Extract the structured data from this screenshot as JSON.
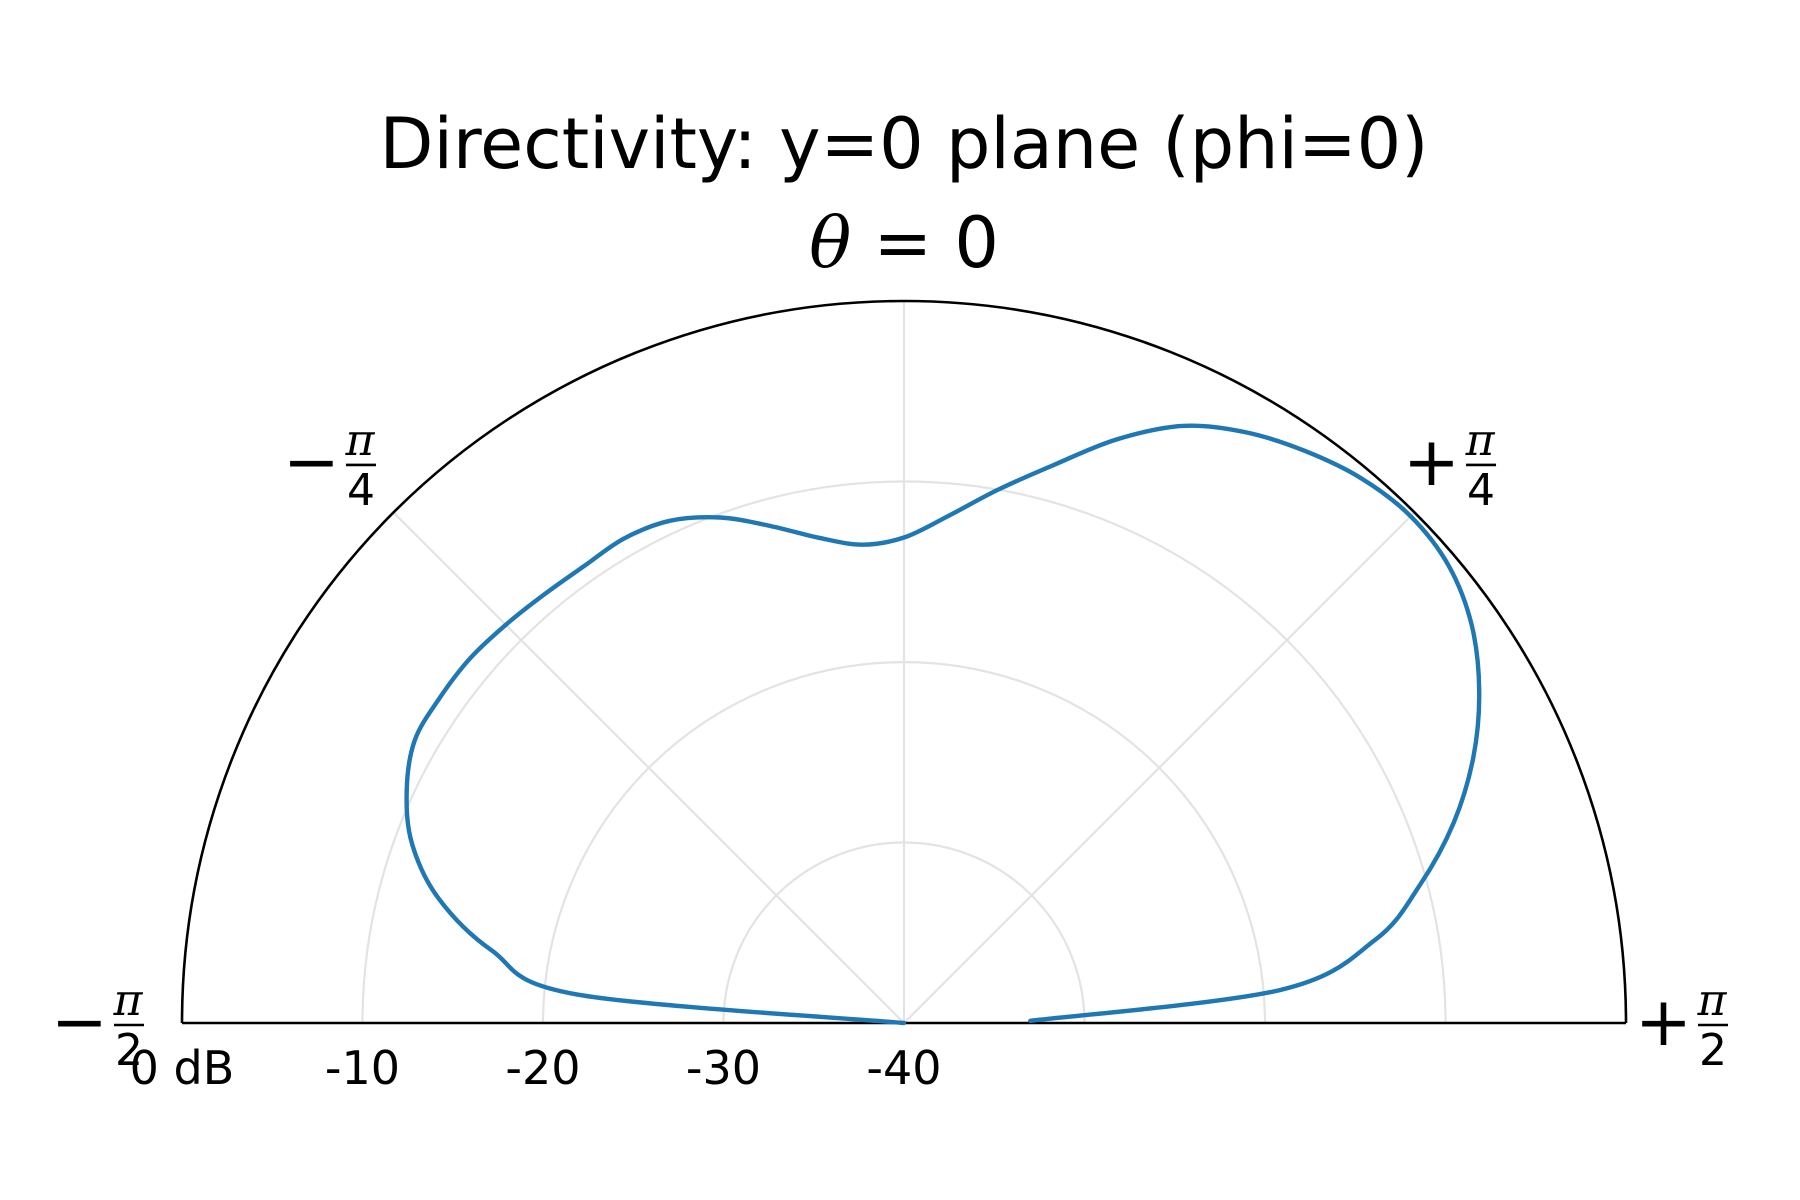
{
  "chart_data": {
    "type": "line",
    "polar": true,
    "title": "Directivity: y=0 plane (phi=0)",
    "angle_unit": "rad",
    "theta_range": [
      -1.5708,
      1.5708
    ],
    "r_range_db": [
      -40,
      0
    ],
    "grid": true,
    "angle_labels": [
      {
        "theta": -1.5708,
        "sign": "−",
        "num": "π",
        "den": "2"
      },
      {
        "theta": -0.7854,
        "sign": "−",
        "num": "π",
        "den": "4"
      },
      {
        "theta": 0.7854,
        "sign": "+",
        "num": "π",
        "den": "4"
      },
      {
        "theta": 1.5708,
        "sign": "+",
        "num": "π",
        "den": "2"
      }
    ],
    "zero_label": {
      "symbol": "θ",
      "rest": " = 0"
    },
    "r_labels": [
      {
        "db": 0,
        "text": "0 dB"
      },
      {
        "db": -10,
        "text": "-10"
      },
      {
        "db": -20,
        "text": "-20"
      },
      {
        "db": -30,
        "text": "-30"
      },
      {
        "db": -40,
        "text": "-40"
      }
    ],
    "series": [
      {
        "color": "#1f77b4",
        "theta_deg": [
          -90,
          -85,
          -80,
          -75,
          -70,
          -65,
          -60,
          -55,
          -50,
          -45,
          -40,
          -35,
          -30,
          -25,
          -20,
          -15,
          -10,
          -5,
          0,
          5,
          10,
          15,
          20,
          25,
          30,
          35,
          40,
          45,
          50,
          55,
          60,
          65,
          70,
          75,
          80,
          85,
          89
        ],
        "r_db": [
          -40.0,
          -21.8,
          -16.8,
          -13.3,
          -11.0,
          -9.6,
          -8.7,
          -8.6,
          -8.6,
          -8.8,
          -9.0,
          -9.1,
          -9.0,
          -9.3,
          -10.2,
          -11.5,
          -12.7,
          -13.4,
          -13.1,
          -11.8,
          -10.0,
          -8.0,
          -5.6,
          -3.5,
          -2.2,
          -1.3,
          -0.6,
          -0.3,
          -0.6,
          -1.6,
          -3.2,
          -5.2,
          -7.6,
          -10.4,
          -13.5,
          -19.1,
          -33.0
        ]
      }
    ]
  }
}
